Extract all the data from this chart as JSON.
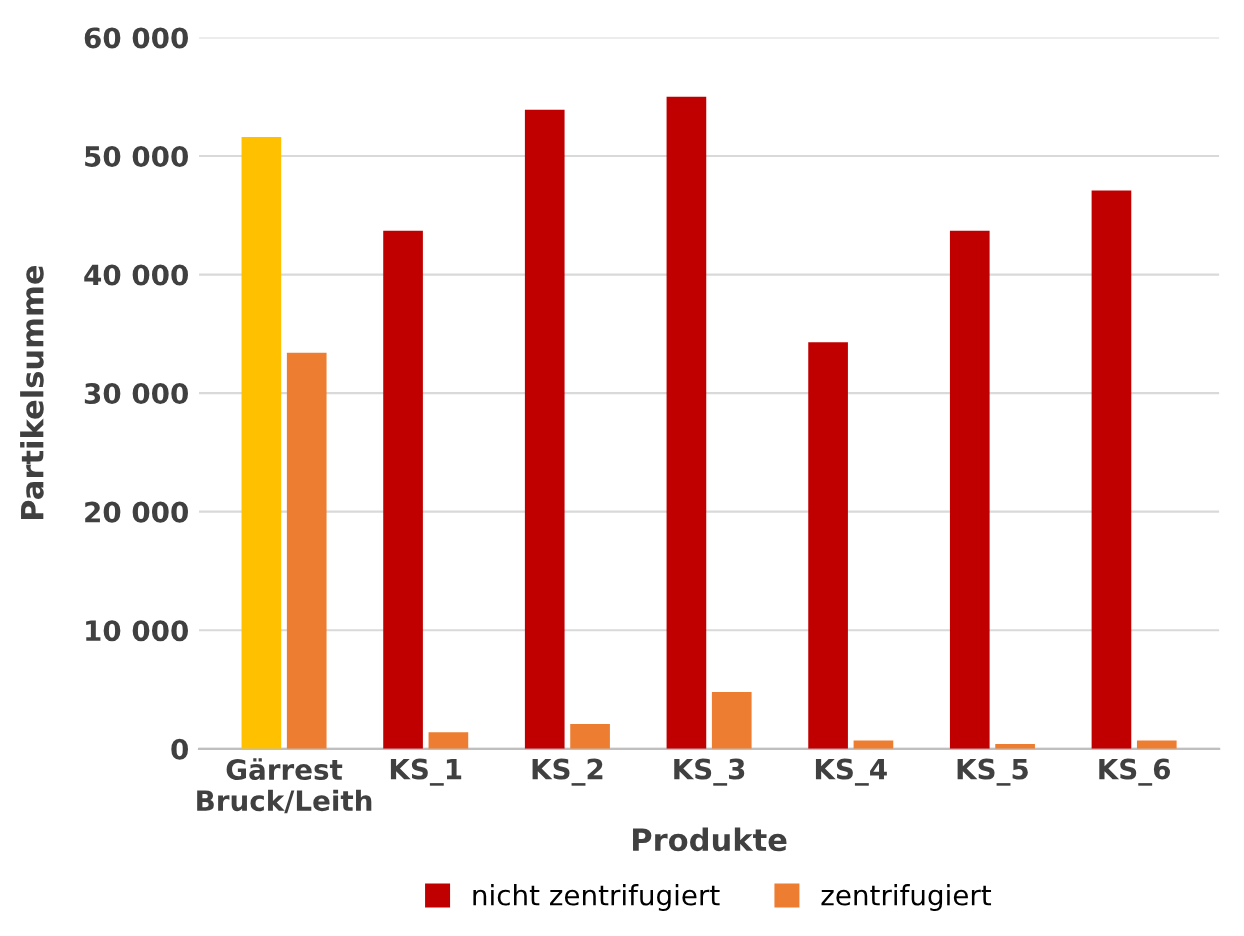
{
  "chart_data": {
    "type": "bar",
    "xlabel": "Produkte",
    "ylabel": "Partikelsumme",
    "categories": [
      "Gärrest\nBruck/Leith",
      "KS_1",
      "KS_2",
      "KS_3",
      "KS_4",
      "KS_5",
      "KS_6"
    ],
    "series": [
      {
        "name": "nicht zentrifugiert",
        "color": "#c00000",
        "colors": [
          "#ffc000",
          "#c00000",
          "#c00000",
          "#c00000",
          "#c00000",
          "#c00000",
          "#c00000"
        ],
        "values": [
          51600,
          43700,
          53900,
          55000,
          34300,
          43700,
          47100
        ]
      },
      {
        "name": "zentrifugiert",
        "color": "#ed7d31",
        "values": [
          33400,
          1400,
          2100,
          4800,
          700,
          400,
          700
        ]
      }
    ],
    "ylim": [
      0,
      60000
    ],
    "yticks": [
      0,
      {
        "value": 10000,
        "label": "10 000"
      },
      {
        "value": 20000,
        "label": "20 000"
      },
      {
        "value": 30000,
        "label": "30 000"
      },
      {
        "value": 40000,
        "label": "40 000"
      },
      {
        "value": 50000,
        "label": "50 000"
      },
      {
        "value": 60000,
        "label": "60 000"
      }
    ],
    "grid": "y",
    "legend": "bottom"
  }
}
